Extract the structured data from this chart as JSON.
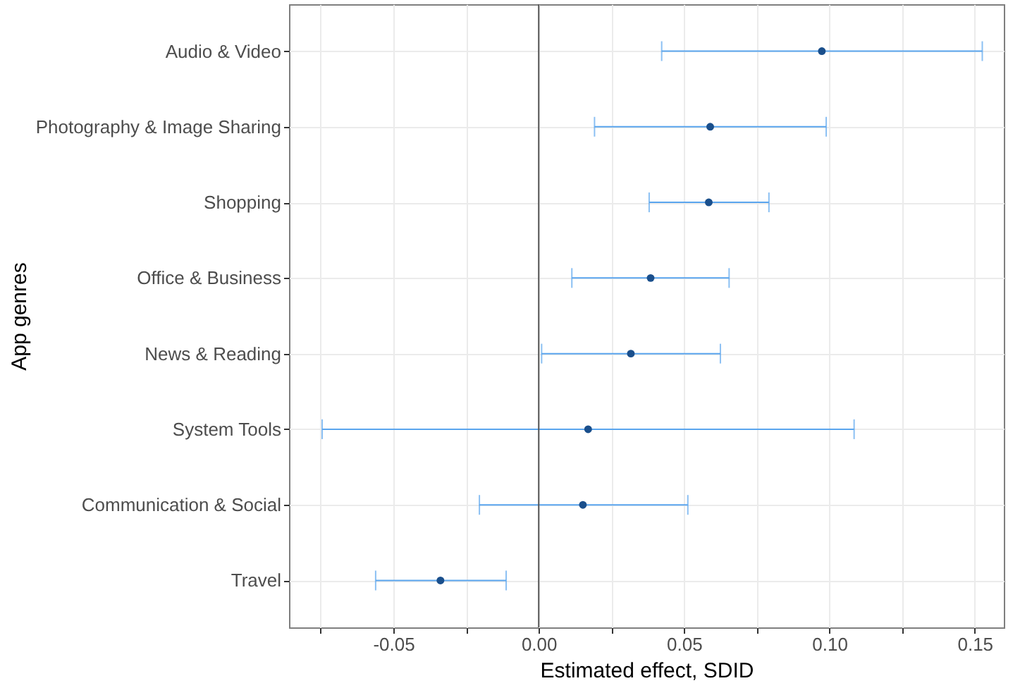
{
  "chart_data": {
    "type": "scatter",
    "orientation": "horizontal",
    "xlabel": "Estimated effect, SDID",
    "ylabel": "App genres",
    "categories": [
      "Audio & Video",
      "Photography & Image Sharing",
      "Shopping",
      "Office & Business",
      "News & Reading",
      "System Tools",
      "Communication & Social",
      "Travel"
    ],
    "series": [
      {
        "color": "#1a4f8c",
        "values": [
          0.0974,
          0.059,
          0.0585,
          0.0385,
          0.0317,
          0.017,
          0.0152,
          -0.0338
        ],
        "errors": [
          [
            0.0423,
            0.1526
          ],
          [
            0.0192,
            0.0989
          ],
          [
            0.038,
            0.0792
          ],
          [
            0.0114,
            0.0655
          ],
          [
            0.001,
            0.0625
          ],
          [
            -0.0745,
            0.1085
          ],
          [
            -0.0204,
            0.0513
          ],
          [
            -0.0561,
            -0.0112
          ]
        ]
      }
    ],
    "xlim": [
      -0.0859,
      0.16
    ],
    "xticks": [
      {
        "value": -0.075,
        "label": null
      },
      {
        "value": -0.05,
        "label": "-0.05"
      },
      {
        "value": -0.025,
        "label": null
      },
      {
        "value": 0.0,
        "label": "0.00"
      },
      {
        "value": 0.025,
        "label": null
      },
      {
        "value": 0.05,
        "label": "0.05"
      },
      {
        "value": 0.075,
        "label": null
      },
      {
        "value": 0.1,
        "label": "0.10"
      },
      {
        "value": 0.125,
        "label": null
      },
      {
        "value": 0.15,
        "label": "0.15"
      }
    ],
    "ref_lines": [
      {
        "axis": "x",
        "value": 0,
        "label": null,
        "color": "#555555"
      }
    ],
    "grid": true,
    "marker": "circle"
  }
}
